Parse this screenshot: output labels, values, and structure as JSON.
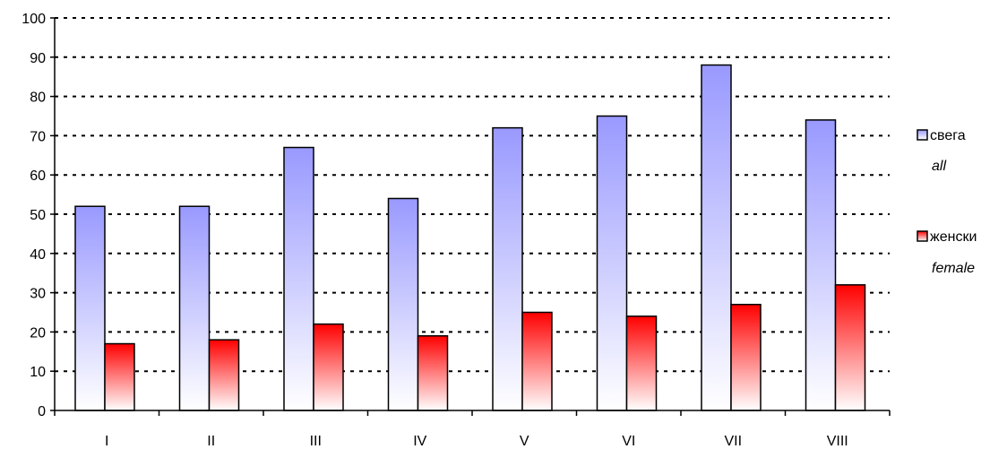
{
  "chart_data": {
    "type": "bar",
    "title": "",
    "xlabel": "",
    "ylabel": "",
    "categories": [
      "I",
      "II",
      "III",
      "IV",
      "V",
      "VI",
      "VII",
      "VIII"
    ],
    "series": [
      {
        "name": "свега",
        "subname": "all",
        "values": [
          52,
          52,
          67,
          54,
          72,
          75,
          88,
          74
        ],
        "color_top": "#9999ff",
        "color_bottom": "#ffffff"
      },
      {
        "name": "женски",
        "subname": "female",
        "values": [
          17,
          18,
          22,
          19,
          25,
          24,
          27,
          32
        ],
        "color_top": "#ff0000",
        "color_bottom": "#ffffff"
      }
    ],
    "ylim": [
      0,
      100
    ],
    "yticks": [
      0,
      10,
      20,
      30,
      40,
      50,
      60,
      70,
      80,
      90,
      100
    ],
    "grid": true,
    "legend_position": "right"
  }
}
